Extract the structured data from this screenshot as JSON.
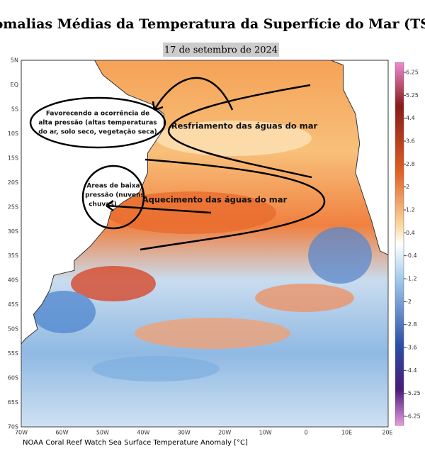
{
  "header": {
    "title": "Anomalias Médias da Temperatura da Superfície do Mar (TSM)",
    "date": "17 de setembro de 2024"
  },
  "map": {
    "lat_labels": [
      "5N",
      "EQ",
      "5S",
      "10S",
      "15S",
      "20S",
      "25S",
      "30S",
      "35S",
      "40S",
      "45S",
      "50S",
      "55S",
      "60S",
      "65S",
      "70S"
    ],
    "lon_labels": [
      "70W",
      "60W",
      "50W",
      "40W",
      "30W",
      "20W",
      "10W",
      "0",
      "10E",
      "20E"
    ],
    "colorbar_ticks": [
      "6.25",
      "5.25",
      "4.4",
      "3.6",
      "2.8",
      "2",
      "1.2",
      "0.4",
      "-0.4",
      "-1.2",
      "-2",
      "-2.8",
      "-3.6",
      "-4.4",
      "-5.25",
      "-6.25"
    ],
    "footer": "NOAA Coral Reef Watch Sea Surface Temperature Anomaly [°C]"
  },
  "annotations": {
    "high_pressure": [
      "Favorecendo a ocorrência de",
      "alta pressão (altas temperaturas",
      "do ar, solo seco, vegetação seca)"
    ],
    "cooling": "Resfriamento das águas do mar",
    "low_pressure": [
      "Áreas de baixa",
      "pressão (nuvens",
      "chuvas)"
    ],
    "warming": "Aquecimento das águas do mar"
  }
}
